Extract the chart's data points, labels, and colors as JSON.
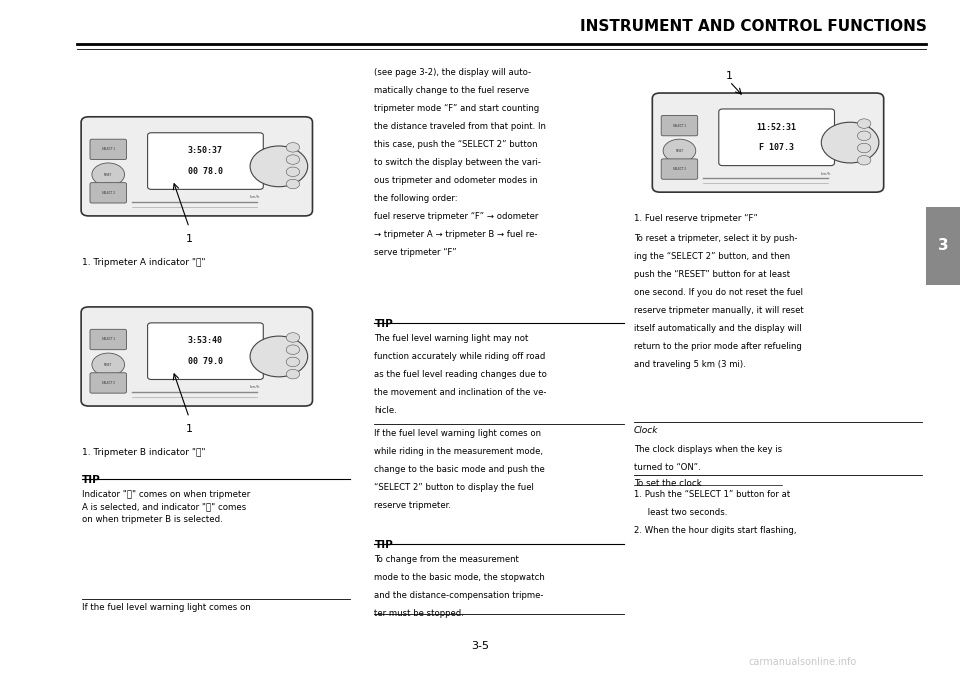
{
  "title": "INSTRUMENT AND CONTROL FUNCTIONS",
  "page_number": "3-5",
  "chapter_number": "3",
  "bg_color": "#ffffff",
  "title_color": "#000000",
  "body_text_color": "#000000",
  "instrument1_display_top": "3:50:37",
  "instrument1_display_bottom": "00 78.0",
  "instrument2_display_top": "3:53:40",
  "instrument2_display_bottom": "00 79.0",
  "instrument3_display_top": "11:52:31",
  "instrument3_display_bottom": "F 107.3",
  "caption1": "1. Tripmeter A indicator \"Ⓐ\"",
  "caption2": "1. Tripmeter B indicator \"Ⓑ\"",
  "caption3": "1. Fuel reserve tripmeter “F”",
  "tip_label": "TIP",
  "tip1_text": "Indicator \"Ⓐ\" comes on when tripmeter\nA is selected, and indicator \"Ⓑ\" comes\non when tripmeter B is selected.",
  "bottom_text_left": "If the fuel level warning light comes on",
  "mid_col_text": "(see page 3-2), the display will auto-\nmatically change to the fuel reserve\ntripmeter mode “F” and start counting\nthe distance traveled from that point. In\nthis case, push the “SELECT 2” button\nto switch the display between the vari-\nous tripmeter and odometer modes in\nthe following order:\nfuel reserve tripmeter “F” → odometer\n→ tripmeter A → tripmeter B → fuel re-\nserve tripmeter “F”",
  "tip2_label": "TIP",
  "tip2_text": "The fuel level warning light may not\nfunction accurately while riding off road\nas the fuel level reading changes due to\nthe movement and inclination of the ve-\nhicle.",
  "mid_bottom1": "If the fuel level warning light comes on\nwhile riding in the measurement mode,\nchange to the basic mode and push the\n“SELECT 2” button to display the fuel\nreserve tripmeter.",
  "tip3_label": "TIP",
  "tip3_text": "To change from the measurement\nmode to the basic mode, the stopwatch\nand the distance-compensation tripme-\nter must be stopped.",
  "right_col_text1": "To reset a tripmeter, select it by push-\ning the “SELECT 2” button, and then\npush the “RESET” button for at least\none second. If you do not reset the fuel\nreserve tripmeter manually, it will reset\nitself automatically and the display will\nreturn to the prior mode after refueling\nand traveling 5 km (3 mi).",
  "clock_title": "Clock",
  "clock_text": "The clock displays when the key is\nturned to “ON”.",
  "set_clock_title": "To set the clock",
  "set_clock_text": "1. Push the “SELECT 1” button for at\n     least two seconds.\n2. When the hour digits start flashing,",
  "watermark": "carmanualsonline.info"
}
